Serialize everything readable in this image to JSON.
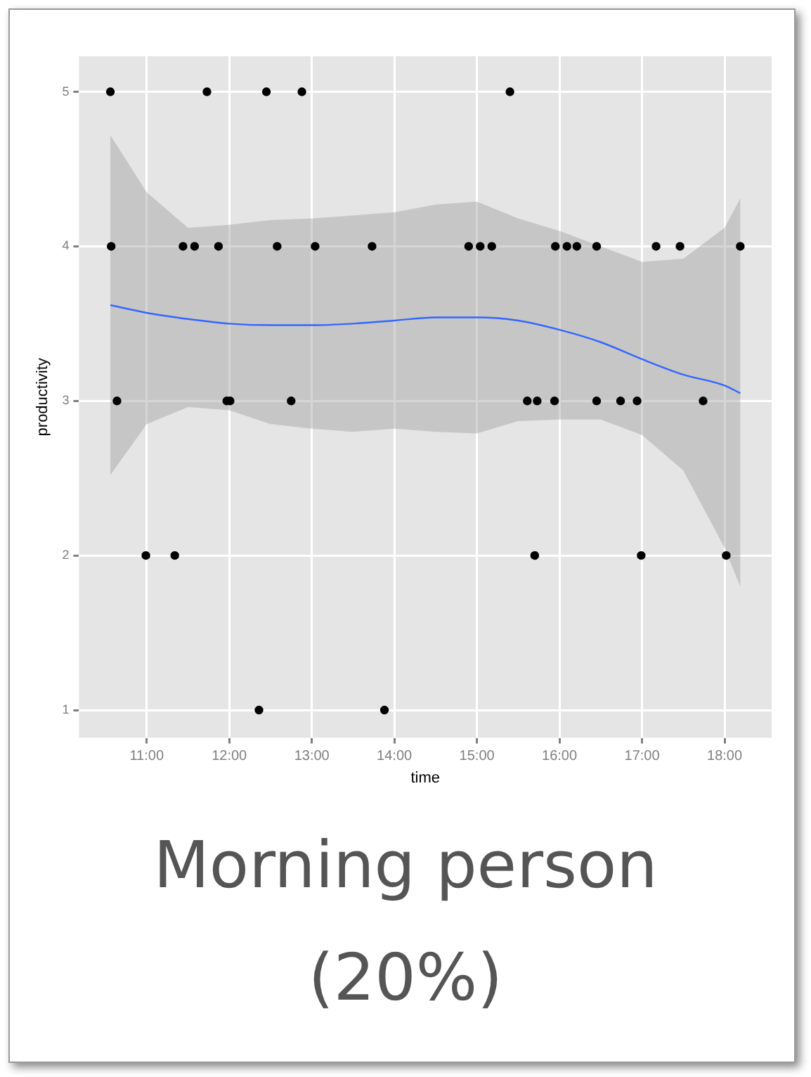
{
  "chart_data": {
    "type": "scatter",
    "title": "Morning person",
    "subtitle": "(20%)",
    "xlabel": "time",
    "ylabel": "productivity",
    "xlim": [
      10.18,
      18.57
    ],
    "ylim": [
      0.82,
      5.23
    ],
    "xticks": [
      {
        "value": 11,
        "label": "11:00"
      },
      {
        "value": 12,
        "label": "12:00"
      },
      {
        "value": 13,
        "label": "13:00"
      },
      {
        "value": 14,
        "label": "14:00"
      },
      {
        "value": 15,
        "label": "15:00"
      },
      {
        "value": 16,
        "label": "16:00"
      },
      {
        "value": 17,
        "label": "17:00"
      },
      {
        "value": 18,
        "label": "18:00"
      }
    ],
    "yticks": [
      1,
      2,
      3,
      4,
      5
    ],
    "grid": true,
    "legend": false,
    "series": [
      {
        "marker": "circle",
        "color": "#000000",
        "x": [
          10.56,
          11.73,
          12.45,
          12.88,
          15.4,
          10.57,
          11.44,
          11.58,
          11.87,
          12.58,
          13.04,
          13.73,
          14.9,
          15.04,
          15.18,
          15.95,
          16.09,
          16.21,
          16.45,
          17.17,
          17.46,
          18.19,
          10.64,
          11.97,
          12.01,
          12.75,
          15.61,
          15.73,
          15.94,
          16.45,
          16.74,
          16.94,
          17.74,
          10.99,
          11.34,
          15.7,
          16.99,
          18.02,
          12.36,
          13.88
        ],
        "values": [
          5,
          5,
          5,
          5,
          5,
          4,
          4,
          4,
          4,
          4,
          4,
          4,
          4,
          4,
          4,
          4,
          4,
          4,
          4,
          4,
          4,
          4,
          3,
          3,
          3,
          3,
          3,
          3,
          3,
          3,
          3,
          3,
          3,
          2,
          2,
          2,
          2,
          2,
          1,
          1
        ]
      },
      {
        "type": "line",
        "marker": "none",
        "color": "#3366ff",
        "x": [
          10.56,
          11.0,
          11.5,
          12.0,
          12.5,
          13.0,
          13.5,
          14.0,
          14.5,
          15.0,
          15.5,
          16.0,
          16.5,
          17.0,
          17.5,
          18.0,
          18.19
        ],
        "values": [
          3.62,
          3.57,
          3.53,
          3.5,
          3.49,
          3.49,
          3.5,
          3.52,
          3.54,
          3.54,
          3.52,
          3.46,
          3.38,
          3.27,
          3.17,
          3.1,
          3.05
        ],
        "lower": [
          2.52,
          2.85,
          2.96,
          2.94,
          2.85,
          2.82,
          2.8,
          2.82,
          2.8,
          2.79,
          2.87,
          2.88,
          2.88,
          2.78,
          2.55,
          2.05,
          1.8
        ],
        "upper": [
          4.72,
          4.35,
          4.12,
          4.14,
          4.17,
          4.18,
          4.2,
          4.22,
          4.27,
          4.29,
          4.18,
          4.1,
          4.0,
          3.9,
          3.92,
          4.12,
          4.31
        ]
      }
    ]
  }
}
